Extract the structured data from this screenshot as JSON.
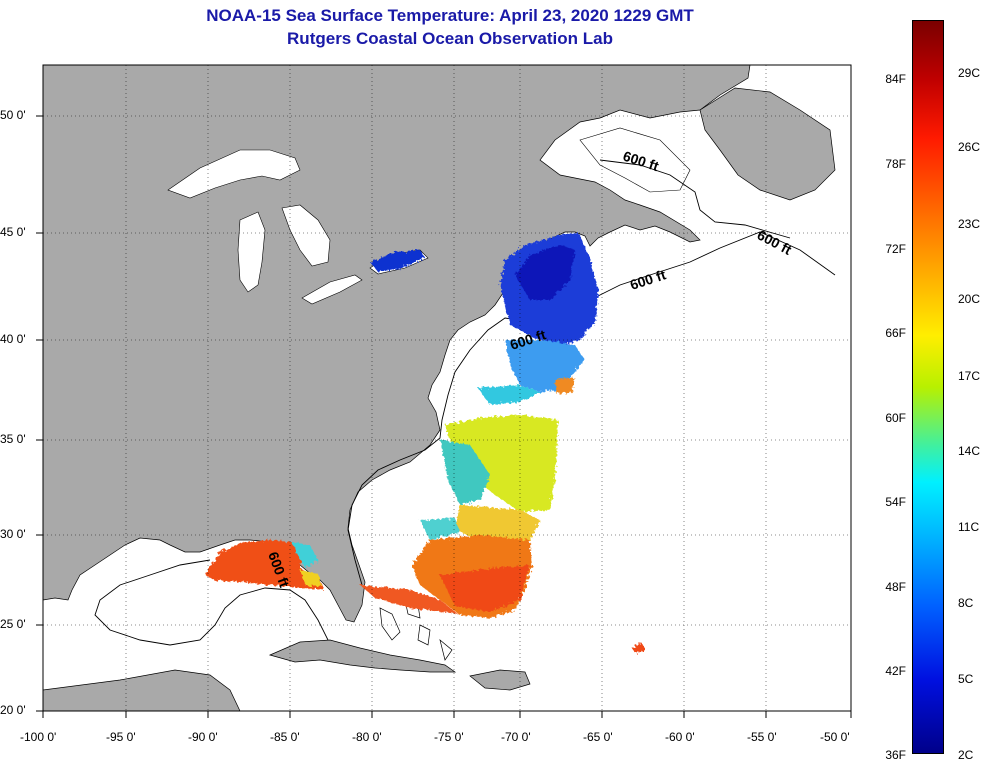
{
  "title": {
    "line1": "NOAA-15 Sea Surface Temperature:  April 23, 2020 1229 GMT",
    "line2": "Rutgers Coastal Ocean Observation Lab"
  },
  "axes": {
    "lon_labels": [
      "-100 0'",
      "-95 0'",
      "-90 0'",
      "-85 0'",
      "-80 0'",
      "-75 0'",
      "-70 0'",
      "-65 0'",
      "-60 0'",
      "-55 0'",
      "-50 0'"
    ],
    "lat_labels": [
      "50 0'",
      "45 0'",
      "40 0'",
      "35 0'",
      "30 0'",
      "25 0'",
      "20 0'"
    ]
  },
  "contour_label": "600 ft",
  "colorbar": {
    "f_labels": [
      "84F",
      "78F",
      "72F",
      "66F",
      "60F",
      "54F",
      "48F",
      "42F",
      "36F"
    ],
    "c_labels": [
      "29C",
      "26C",
      "23C",
      "20C",
      "17C",
      "14C",
      "11C",
      "8C",
      "5C",
      "2C"
    ]
  },
  "colors": {
    "land": "#a9a9a9",
    "ocean": "#ffffff",
    "title": "#1a1aa8"
  }
}
